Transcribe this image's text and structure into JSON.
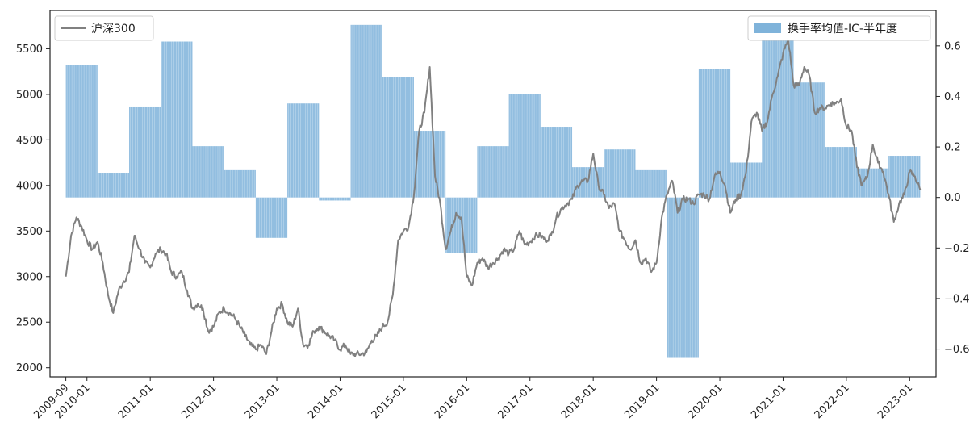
{
  "chart_data": {
    "type": "bar+line",
    "x_ticks": [
      "2009-09",
      "2010-01",
      "2011-01",
      "2012-01",
      "2013-01",
      "2014-01",
      "2015-01",
      "2016-01",
      "2017-01",
      "2018-01",
      "2019-01",
      "2020-01",
      "2021-01",
      "2022-01",
      "2023-01"
    ],
    "y_left": {
      "ticks": [
        2000,
        2500,
        3000,
        3500,
        4000,
        4500,
        5000,
        5500
      ],
      "range": [
        1900,
        5920
      ]
    },
    "y_right": {
      "ticks": [
        "0.6",
        "0.4",
        "0.2",
        "0.0",
        "−0.2",
        "−0.4",
        "−0.6"
      ],
      "tick_values": [
        0.6,
        0.4,
        0.2,
        0.0,
        -0.2,
        -0.4,
        -0.6
      ],
      "range": [
        -0.71,
        0.74
      ]
    },
    "bar_series": {
      "name": "换手率均值-IC-半年度",
      "color": "#7fb3da",
      "periods": [
        {
          "start": "2009-09",
          "end": "2010-03",
          "value": 0.525
        },
        {
          "start": "2010-03",
          "end": "2010-09",
          "value": 0.098
        },
        {
          "start": "2010-09",
          "end": "2011-03",
          "value": 0.36
        },
        {
          "start": "2011-03",
          "end": "2011-09",
          "value": 0.617
        },
        {
          "start": "2011-09",
          "end": "2012-03",
          "value": 0.203
        },
        {
          "start": "2012-03",
          "end": "2012-09",
          "value": 0.108
        },
        {
          "start": "2012-09",
          "end": "2013-03",
          "value": -0.16
        },
        {
          "start": "2013-03",
          "end": "2013-09",
          "value": 0.372
        },
        {
          "start": "2013-09",
          "end": "2014-03",
          "value": -0.012
        },
        {
          "start": "2014-03",
          "end": "2014-09",
          "value": 0.683
        },
        {
          "start": "2014-09",
          "end": "2015-03",
          "value": 0.476
        },
        {
          "start": "2015-03",
          "end": "2015-09",
          "value": 0.264
        },
        {
          "start": "2015-09",
          "end": "2016-03",
          "value": -0.22
        },
        {
          "start": "2016-03",
          "end": "2016-09",
          "value": 0.203
        },
        {
          "start": "2016-09",
          "end": "2017-03",
          "value": 0.41
        },
        {
          "start": "2017-03",
          "end": "2017-09",
          "value": 0.28
        },
        {
          "start": "2017-09",
          "end": "2018-03",
          "value": 0.12
        },
        {
          "start": "2018-03",
          "end": "2018-09",
          "value": 0.19
        },
        {
          "start": "2018-09",
          "end": "2019-03",
          "value": 0.108
        },
        {
          "start": "2019-03",
          "end": "2019-09",
          "value": -0.635
        },
        {
          "start": "2019-09",
          "end": "2020-03",
          "value": 0.508
        },
        {
          "start": "2020-03",
          "end": "2020-09",
          "value": 0.138
        },
        {
          "start": "2020-09",
          "end": "2021-03",
          "value": 0.655
        },
        {
          "start": "2021-03",
          "end": "2021-09",
          "value": 0.455
        },
        {
          "start": "2021-09",
          "end": "2022-03",
          "value": 0.2
        },
        {
          "start": "2022-03",
          "end": "2022-09",
          "value": 0.115
        },
        {
          "start": "2022-09",
          "end": "2023-03",
          "value": 0.165
        }
      ]
    },
    "line_series": {
      "name": "沪深300",
      "color": "#808080",
      "points": [
        [
          "2009-09",
          3000
        ],
        [
          "2009-10",
          3450
        ],
        [
          "2009-11",
          3650
        ],
        [
          "2009-12",
          3550
        ],
        [
          "2010-01",
          3400
        ],
        [
          "2010-02",
          3300
        ],
        [
          "2010-03",
          3380
        ],
        [
          "2010-04",
          3150
        ],
        [
          "2010-05",
          2800
        ],
        [
          "2010-06",
          2600
        ],
        [
          "2010-07",
          2850
        ],
        [
          "2010-08",
          2950
        ],
        [
          "2010-09",
          3050
        ],
        [
          "2010-10",
          3450
        ],
        [
          "2010-11",
          3300
        ],
        [
          "2010-12",
          3150
        ],
        [
          "2011-01",
          3100
        ],
        [
          "2011-02",
          3250
        ],
        [
          "2011-03",
          3300
        ],
        [
          "2011-04",
          3250
        ],
        [
          "2011-05",
          3050
        ],
        [
          "2011-06",
          3000
        ],
        [
          "2011-07",
          3050
        ],
        [
          "2011-08",
          2850
        ],
        [
          "2011-09",
          2650
        ],
        [
          "2011-10",
          2700
        ],
        [
          "2011-11",
          2650
        ],
        [
          "2011-12",
          2400
        ],
        [
          "2012-01",
          2450
        ],
        [
          "2012-02",
          2600
        ],
        [
          "2012-03",
          2650
        ],
        [
          "2012-04",
          2600
        ],
        [
          "2012-05",
          2550
        ],
        [
          "2012-06",
          2450
        ],
        [
          "2012-07",
          2350
        ],
        [
          "2012-08",
          2250
        ],
        [
          "2012-09",
          2200
        ],
        [
          "2012-10",
          2250
        ],
        [
          "2012-11",
          2150
        ],
        [
          "2012-12",
          2400
        ],
        [
          "2013-01",
          2650
        ],
        [
          "2013-02",
          2700
        ],
        [
          "2013-03",
          2500
        ],
        [
          "2013-04",
          2450
        ],
        [
          "2013-05",
          2650
        ],
        [
          "2013-06",
          2250
        ],
        [
          "2013-07",
          2250
        ],
        [
          "2013-08",
          2400
        ],
        [
          "2013-09",
          2450
        ],
        [
          "2013-10",
          2400
        ],
        [
          "2013-11",
          2350
        ],
        [
          "2013-12",
          2300
        ],
        [
          "2014-01",
          2200
        ],
        [
          "2014-02",
          2250
        ],
        [
          "2014-03",
          2150
        ],
        [
          "2014-04",
          2150
        ],
        [
          "2014-05",
          2150
        ],
        [
          "2014-06",
          2170
        ],
        [
          "2014-07",
          2300
        ],
        [
          "2014-08",
          2350
        ],
        [
          "2014-09",
          2450
        ],
        [
          "2014-10",
          2500
        ],
        [
          "2014-11",
          2800
        ],
        [
          "2014-12",
          3400
        ],
        [
          "2015-01",
          3500
        ],
        [
          "2015-02",
          3550
        ],
        [
          "2015-03",
          3900
        ],
        [
          "2015-04",
          4600
        ],
        [
          "2015-05",
          4800
        ],
        [
          "2015-06",
          5300
        ],
        [
          "2015-07",
          4100
        ],
        [
          "2015-08",
          3800
        ],
        [
          "2015-09",
          3300
        ],
        [
          "2015-10",
          3500
        ],
        [
          "2015-11",
          3700
        ],
        [
          "2015-12",
          3650
        ],
        [
          "2016-01",
          3000
        ],
        [
          "2016-02",
          2900
        ],
        [
          "2016-03",
          3150
        ],
        [
          "2016-04",
          3200
        ],
        [
          "2016-05",
          3100
        ],
        [
          "2016-06",
          3150
        ],
        [
          "2016-07",
          3200
        ],
        [
          "2016-08",
          3300
        ],
        [
          "2016-09",
          3250
        ],
        [
          "2016-10",
          3300
        ],
        [
          "2016-11",
          3500
        ],
        [
          "2016-12",
          3350
        ],
        [
          "2017-01",
          3380
        ],
        [
          "2017-02",
          3450
        ],
        [
          "2017-03",
          3450
        ],
        [
          "2017-04",
          3400
        ],
        [
          "2017-05",
          3450
        ],
        [
          "2017-06",
          3650
        ],
        [
          "2017-07",
          3750
        ],
        [
          "2017-08",
          3800
        ],
        [
          "2017-09",
          3850
        ],
        [
          "2017-10",
          4000
        ],
        [
          "2017-11",
          4050
        ],
        [
          "2017-12",
          4050
        ],
        [
          "2018-01",
          4350
        ],
        [
          "2018-02",
          4000
        ],
        [
          "2018-03",
          3900
        ],
        [
          "2018-04",
          3750
        ],
        [
          "2018-05",
          3800
        ],
        [
          "2018-06",
          3500
        ],
        [
          "2018-07",
          3400
        ],
        [
          "2018-08",
          3300
        ],
        [
          "2018-09",
          3400
        ],
        [
          "2018-10",
          3150
        ],
        [
          "2018-11",
          3200
        ],
        [
          "2018-12",
          3050
        ],
        [
          "2019-01",
          3150
        ],
        [
          "2019-02",
          3650
        ],
        [
          "2019-03",
          3900
        ],
        [
          "2019-04",
          4050
        ],
        [
          "2019-05",
          3700
        ],
        [
          "2019-06",
          3850
        ],
        [
          "2019-07",
          3850
        ],
        [
          "2019-08",
          3800
        ],
        [
          "2019-09",
          3900
        ],
        [
          "2019-10",
          3900
        ],
        [
          "2019-11",
          3850
        ],
        [
          "2019-12",
          4100
        ],
        [
          "2020-01",
          4150
        ],
        [
          "2020-02",
          4000
        ],
        [
          "2020-03",
          3700
        ],
        [
          "2020-04",
          3850
        ],
        [
          "2020-05",
          3900
        ],
        [
          "2020-06",
          4150
        ],
        [
          "2020-07",
          4700
        ],
        [
          "2020-08",
          4800
        ],
        [
          "2020-09",
          4600
        ],
        [
          "2020-10",
          4700
        ],
        [
          "2020-11",
          5000
        ],
        [
          "2020-12",
          5200
        ],
        [
          "2021-01",
          5450
        ],
        [
          "2021-02",
          5600
        ],
        [
          "2021-03",
          5100
        ],
        [
          "2021-04",
          5100
        ],
        [
          "2021-05",
          5300
        ],
        [
          "2021-06",
          5200
        ],
        [
          "2021-07",
          4800
        ],
        [
          "2021-08",
          4850
        ],
        [
          "2021-09",
          4850
        ],
        [
          "2021-10",
          4900
        ],
        [
          "2021-11",
          4900
        ],
        [
          "2021-12",
          4950
        ],
        [
          "2022-01",
          4650
        ],
        [
          "2022-02",
          4600
        ],
        [
          "2022-03",
          4200
        ],
        [
          "2022-04",
          4000
        ],
        [
          "2022-05",
          4100
        ],
        [
          "2022-06",
          4450
        ],
        [
          "2022-07",
          4250
        ],
        [
          "2022-08",
          4150
        ],
        [
          "2022-09",
          3900
        ],
        [
          "2022-10",
          3600
        ],
        [
          "2022-11",
          3800
        ],
        [
          "2022-12",
          3900
        ],
        [
          "2023-01",
          4150
        ],
        [
          "2023-02",
          4100
        ],
        [
          "2023-03",
          3950
        ]
      ]
    },
    "legend": {
      "line_label": "沪深300",
      "bar_label": "换手率均值-IC-半年度"
    },
    "grid": false,
    "x_range": [
      "2009-06",
      "2023-06"
    ]
  }
}
